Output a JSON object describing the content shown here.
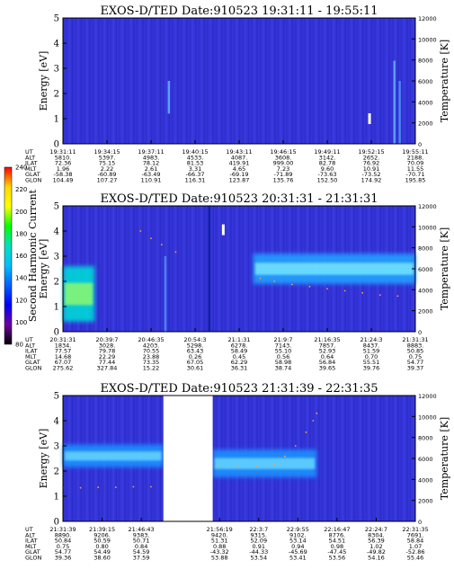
{
  "colorbar": {
    "label": "Second Harmonic Current",
    "ticks": [
      "240",
      "220",
      "200",
      "180",
      "160",
      "140",
      "120",
      "100",
      "80"
    ],
    "colors": [
      "#ff0000",
      "#ffd700",
      "#ffff00",
      "#00ff00",
      "#00e0c0",
      "#00c0ff",
      "#0060ff",
      "#0000ff",
      "#7000a0",
      "#000000"
    ]
  },
  "chart_data": [
    {
      "type": "heatmap",
      "title": "EXOS-D/TED   Date:910523   19:31:11 - 19:55:11",
      "ylabel": "Energy [eV]",
      "y2label": "Temperature [K]",
      "ylim": [
        0,
        5
      ],
      "y2lim": [
        0,
        12000
      ],
      "yticks": [
        "0",
        "1",
        "2",
        "3",
        "4",
        "5"
      ],
      "y2ticks": [
        "0",
        "2000",
        "4000",
        "6000",
        "8000",
        "10000",
        "12000"
      ],
      "background": "#3434d8",
      "gap": null,
      "bands": [],
      "streaks": [
        {
          "x": 0.3,
          "y0": 1.2,
          "y1": 2.5,
          "color": "#5aa0ff"
        },
        {
          "x": 0.94,
          "y0": 0.0,
          "y1": 3.3,
          "color": "#5a9cff"
        },
        {
          "x": 0.955,
          "y0": 0.0,
          "y1": 2.5,
          "color": "#4c86f0"
        }
      ],
      "spots": [
        {
          "x": 0.87,
          "y": 1.0,
          "color": "#ffffff"
        }
      ],
      "temperature_points": [],
      "ephemeris": {
        "rows": [
          "UT",
          "ALT",
          "ILAT",
          "MLT",
          "GLAT",
          "GLON"
        ],
        "times": [
          "19:31:11",
          "19:34:15",
          "19:37:11",
          "19:40:15",
          "19:43:11",
          "19:46:15",
          "19:49:11",
          "19:52:15",
          "19:55:11"
        ],
        "values": [
          [
            "5810.",
            "5397.",
            "4983.",
            "4533.",
            "4087.",
            "3608.",
            "3142.",
            "2652.",
            "2188."
          ],
          [
            "72.36",
            "75.15",
            "78.12",
            "81.53",
            "419.91",
            "999.00",
            "82.78",
            "76.92",
            "70.09"
          ],
          [
            "1.96",
            "2.22",
            "2.61",
            "3.31",
            "4.65",
            "7.23",
            "9.60",
            "10.91",
            "11.55"
          ],
          [
            "-58.38",
            "-60.89",
            "-63.49",
            "-66.37",
            "-69.19",
            "-71.89",
            "-73.63",
            "-73.52",
            "-70.71"
          ],
          [
            "104.49",
            "107.27",
            "110.91",
            "116.31",
            "123.87",
            "135.76",
            "152.50",
            "174.92",
            "195.85"
          ]
        ]
      }
    },
    {
      "type": "heatmap",
      "title": "EXOS-D/TED   Date:910523   20:31:31 - 21:31:31",
      "ylabel": "Energy [eV]",
      "y2label": "Temperature [K]",
      "ylim": [
        0,
        5
      ],
      "y2lim": [
        0,
        12000
      ],
      "yticks": [
        "0",
        "1",
        "2",
        "3",
        "4",
        "5"
      ],
      "y2ticks": [
        "0",
        "2000",
        "4000",
        "6000",
        "8000",
        "10000",
        "12000"
      ],
      "background": "#3434d8",
      "gap": null,
      "bands": [
        {
          "x0": 0.0,
          "x1": 0.09,
          "y": 1.5,
          "h": 2.2,
          "color": "#00d8d8",
          "core": "#a0ff60"
        },
        {
          "x0": 0.54,
          "x1": 1.0,
          "y": 2.5,
          "h": 1.2,
          "color": "#20a0ff",
          "core": "#80f0ff"
        }
      ],
      "streaks": [
        {
          "x": 0.415,
          "y0": 0.0,
          "y1": 5.0,
          "color": "#1020a0"
        },
        {
          "x": 0.29,
          "y0": 0.0,
          "y1": 3.0,
          "color": "#4c80f0"
        }
      ],
      "spots": [
        {
          "x": 0.455,
          "y": 4.05,
          "color": "#ffffff"
        }
      ],
      "temperature_points": [
        [
          0.22,
          9600
        ],
        [
          0.25,
          8900
        ],
        [
          0.28,
          8300
        ],
        [
          0.32,
          7600
        ],
        [
          0.56,
          5100
        ],
        [
          0.6,
          4800
        ],
        [
          0.65,
          4500
        ],
        [
          0.7,
          4300
        ],
        [
          0.75,
          4100
        ],
        [
          0.8,
          3900
        ],
        [
          0.85,
          3700
        ],
        [
          0.9,
          3500
        ],
        [
          0.95,
          3400
        ],
        [
          1.0,
          3300
        ]
      ],
      "ephemeris": {
        "rows": [
          "UT",
          "ALT",
          "ILAT",
          "MLT",
          "GLAT",
          "GLON"
        ],
        "times": [
          "20:31:31",
          "20:39:7",
          "20:46:35",
          "20:54:3",
          "21:1:31",
          "21:9:7",
          "21:16:35",
          "21:24:3",
          "21:31:31"
        ],
        "values": [
          [
            "1834.",
            "3028.",
            "4203.",
            "5298.",
            "6278.",
            "7143.",
            "7857.",
            "8437.",
            "8883."
          ],
          [
            "77.57",
            "79.78",
            "70.55",
            "63.43",
            "58.49",
            "55.10",
            "52.93",
            "51.59",
            "50.85"
          ],
          [
            "14.68",
            "22.29",
            "23.88",
            "0.26",
            "0.45",
            "0.56",
            "0.64",
            "0.70",
            "0.75"
          ],
          [
            "67.07",
            "77.44",
            "73.35",
            "67.05",
            "62.29",
            "58.98",
            "56.84",
            "55.51",
            "54.77"
          ],
          [
            "275.62",
            "327.84",
            "15.22",
            "30.61",
            "36.31",
            "38.74",
            "39.65",
            "39.76",
            "39.37"
          ]
        ]
      }
    },
    {
      "type": "heatmap",
      "title": "EXOS-D/TED   Date:910523   21:31:39 - 22:31:35",
      "ylabel": "Energy [eV]",
      "y2label": "Temperature [K]",
      "ylim": [
        0,
        5
      ],
      "y2lim": [
        0,
        12000
      ],
      "yticks": [
        "0",
        "1",
        "2",
        "3",
        "4",
        "5"
      ],
      "y2ticks": [
        "0",
        "2000",
        "4000",
        "6000",
        "8000",
        "10000",
        "12000"
      ],
      "background": "#3434d8",
      "gap": [
        0.285,
        0.425
      ],
      "bands": [
        {
          "x0": 0.0,
          "x1": 0.285,
          "y": 2.6,
          "h": 0.9,
          "color": "#1a90ff",
          "core": "#70e0ff"
        },
        {
          "x0": 0.425,
          "x1": 0.72,
          "y": 2.3,
          "h": 1.1,
          "color": "#1a90ff",
          "core": "#70e0ff"
        }
      ],
      "streaks": [],
      "spots": [],
      "temperature_points": [
        [
          0.0,
          3200
        ],
        [
          0.05,
          3200
        ],
        [
          0.1,
          3250
        ],
        [
          0.15,
          3250
        ],
        [
          0.2,
          3300
        ],
        [
          0.25,
          3300
        ],
        [
          0.44,
          5300
        ],
        [
          0.5,
          5250
        ],
        [
          0.55,
          5250
        ],
        [
          0.6,
          5400
        ],
        [
          0.63,
          6200
        ],
        [
          0.66,
          7200
        ],
        [
          0.69,
          8500
        ],
        [
          0.71,
          9600
        ],
        [
          0.72,
          10300
        ]
      ],
      "ephemeris": {
        "rows": [
          "UT",
          "ALT",
          "ILAT",
          "MLT",
          "GLAT",
          "GLON"
        ],
        "times": [
          "21:31:39",
          "21:39:15",
          "21:46:43",
          "",
          "21:56:19",
          "22:3:7",
          "22:9:55",
          "22:16:47",
          "22:24:7",
          "22:31:35"
        ],
        "values": [
          [
            "8890.",
            "9206.",
            "9383.",
            "",
            "9420.",
            "9315.",
            "9102.",
            "8776.",
            "8304.",
            "7691."
          ],
          [
            "50.84",
            "50.59",
            "50.71",
            "",
            "51.31",
            "52.09",
            "53.14",
            "54.51",
            "56.39",
            "58.84"
          ],
          [
            "0.75",
            "0.80",
            "0.84",
            "",
            "0.88",
            "0.91",
            "0.94",
            "0.98",
            "1.02",
            "1.07"
          ],
          [
            "54.77",
            "54.49",
            "54.59",
            "",
            "-43.32",
            "-44.33",
            "-45.69",
            "-47.45",
            "-49.82",
            "-52.86"
          ],
          [
            "39.36",
            "38.60",
            "37.59",
            "",
            "53.88",
            "53.54",
            "53.41",
            "53.56",
            "54.16",
            "55.46"
          ]
        ]
      }
    }
  ]
}
